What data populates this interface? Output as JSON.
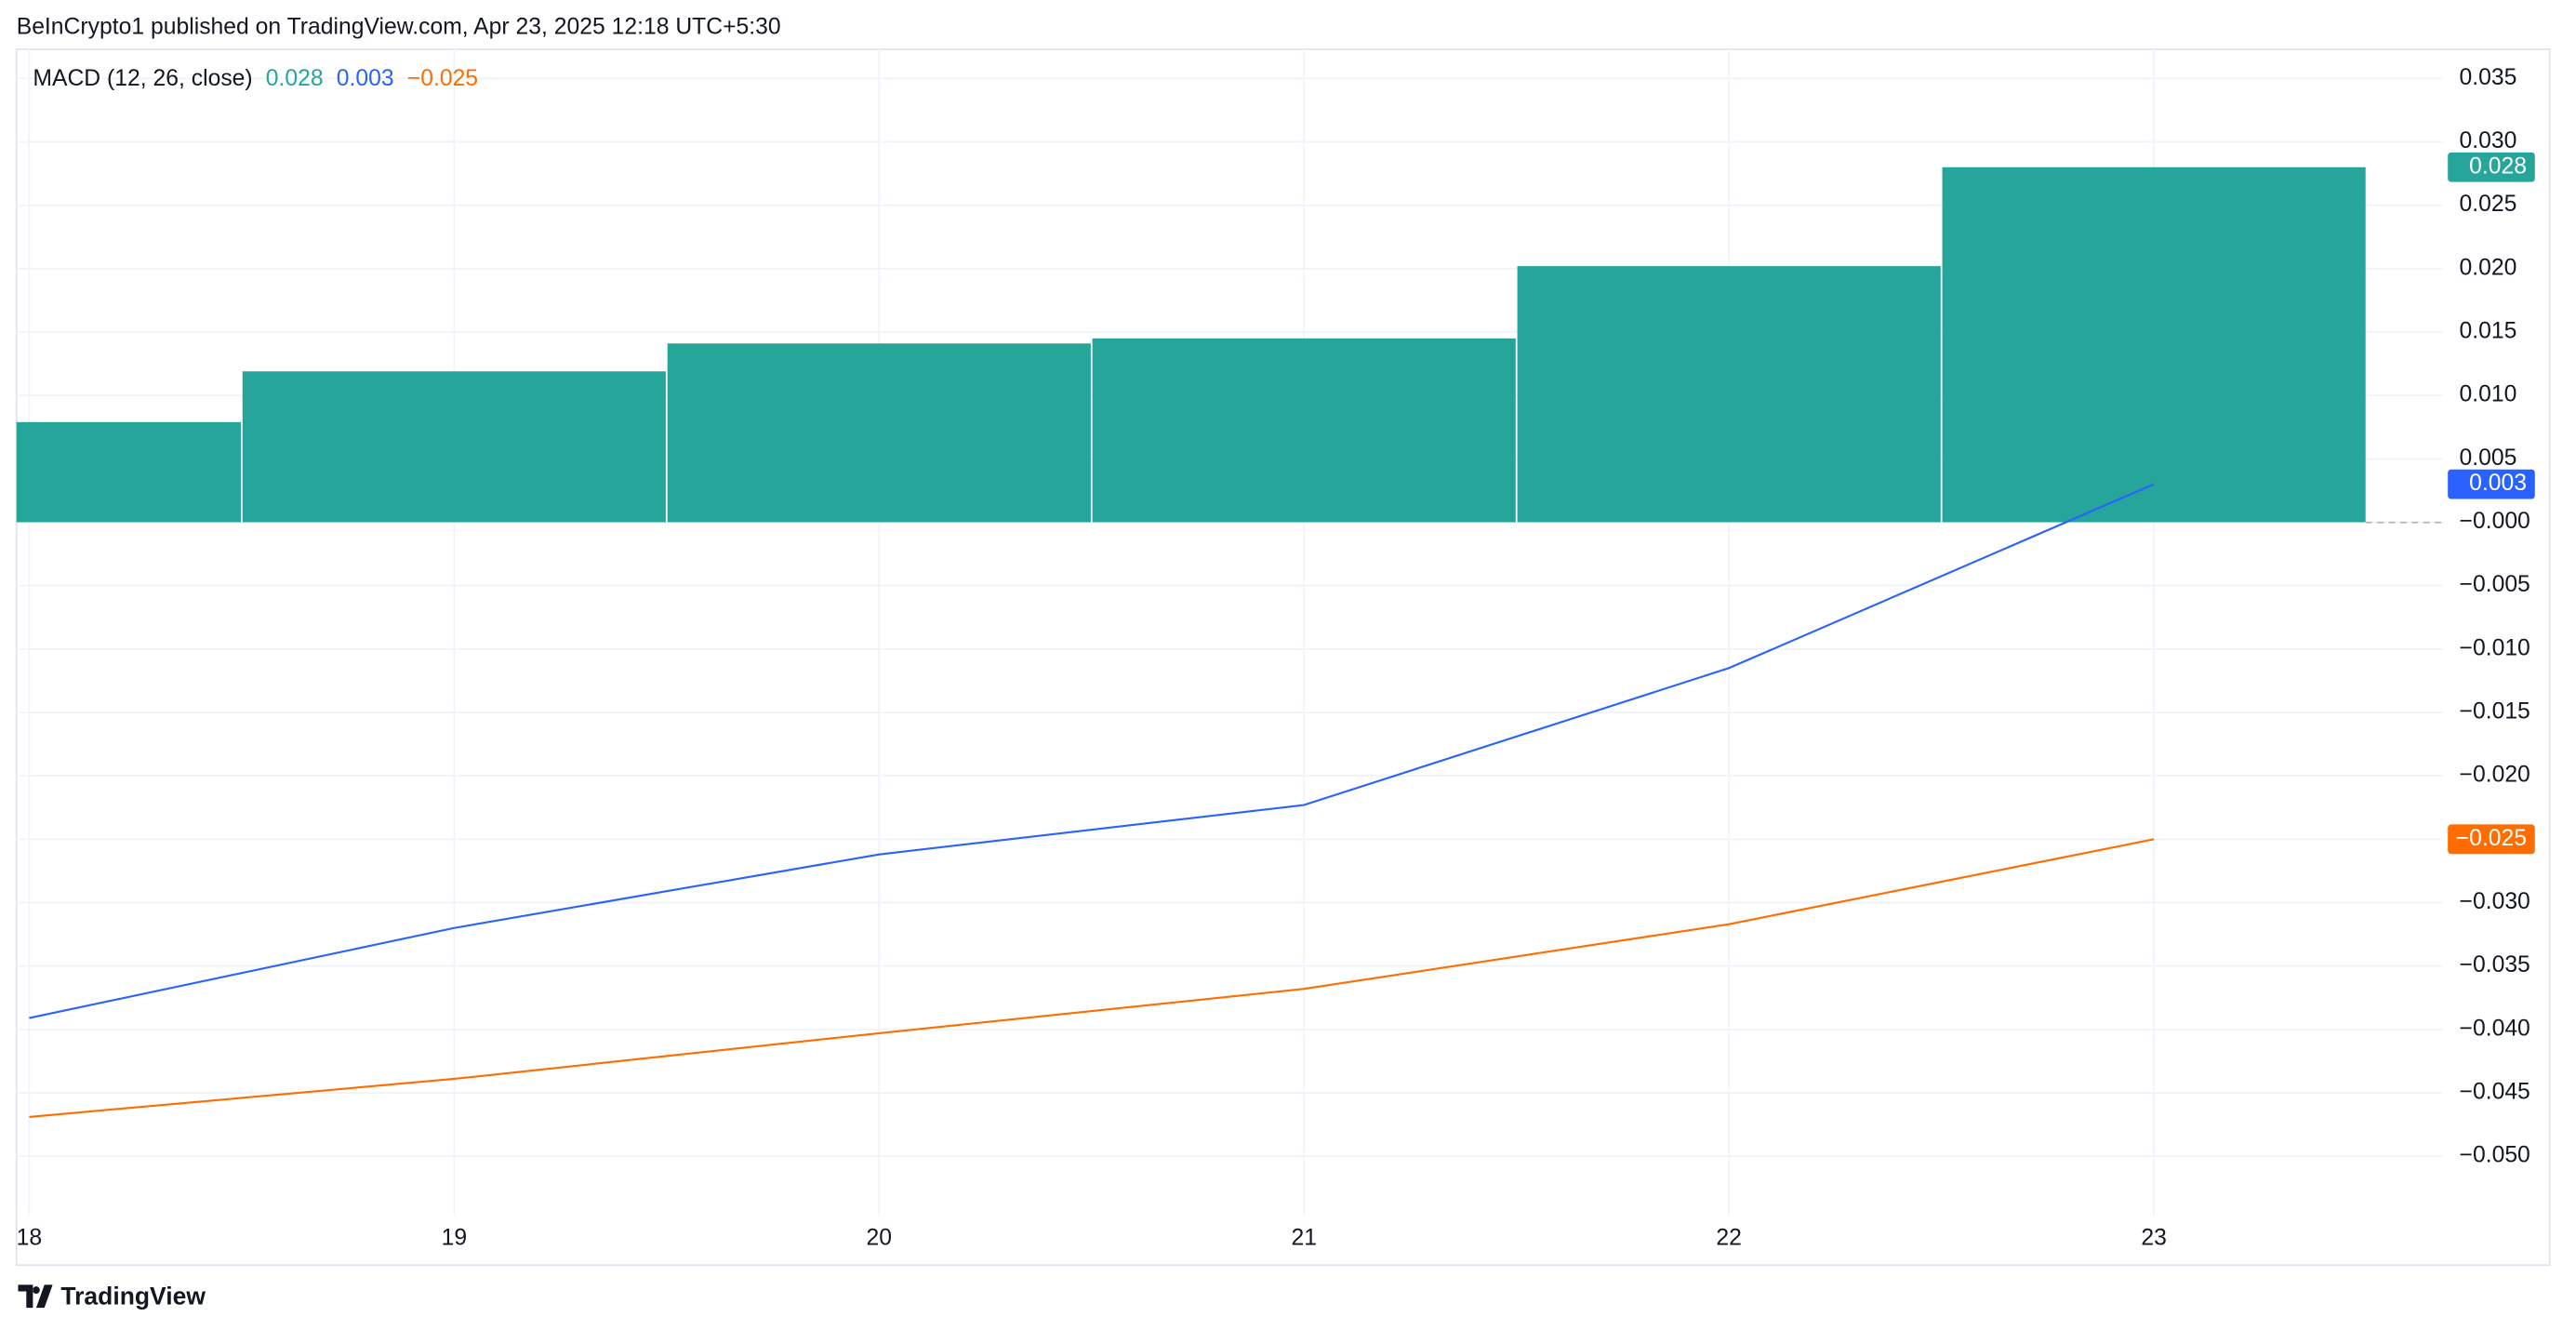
{
  "header": {
    "published": "BeInCrypto1 published on TradingView.com, Apr 23, 2025 12:18 UTC+5:30",
    "footer": "TradingView"
  },
  "chart_data": {
    "type": "bar",
    "title": "MACD (12, 26, close)",
    "x": [
      18,
      19,
      20,
      21,
      22,
      23
    ],
    "series": [
      {
        "type": "bar",
        "color": "#26a69a",
        "values": [
          0.0079,
          0.0119,
          0.0141,
          0.0145,
          0.0202,
          0.028
        ],
        "value_labels": [
          null,
          null,
          null,
          null,
          null,
          "0.028"
        ]
      },
      {
        "type": "line",
        "color": "#2962ff",
        "values": [
          -0.0391,
          -0.032,
          -0.0262,
          -0.0223,
          -0.0115,
          0.003
        ],
        "value_labels": [
          null,
          null,
          null,
          null,
          null,
          "0.003"
        ]
      },
      {
        "type": "line",
        "color": "#ff6d00",
        "values": [
          -0.0469,
          -0.0439,
          -0.0403,
          -0.0368,
          -0.0317,
          -0.025
        ],
        "value_labels": [
          null,
          null,
          null,
          null,
          null,
          "−0.025"
        ]
      }
    ],
    "xlim": [
      17.97,
      23.68
    ],
    "xticks": [
      18,
      19,
      20,
      21,
      22,
      23
    ],
    "ylim": [
      -0.0547,
      0.0373
    ],
    "yticks": [
      {
        "value": 0.035,
        "label": "0.035"
      },
      {
        "value": 0.03,
        "label": "0.030"
      },
      {
        "value": 0.025,
        "label": "0.025"
      },
      {
        "value": 0.02,
        "label": "0.020"
      },
      {
        "value": 0.015,
        "label": "0.015"
      },
      {
        "value": 0.01,
        "label": "0.010"
      },
      {
        "value": 0.005,
        "label": "0.005"
      },
      {
        "value": 0,
        "label": "−0.000"
      },
      {
        "value": -0.005,
        "label": "−0.005"
      },
      {
        "value": -0.01,
        "label": "−0.010"
      },
      {
        "value": -0.015,
        "label": "−0.015"
      },
      {
        "value": -0.02,
        "label": "−0.020"
      },
      {
        "value": -0.025,
        "label": "−0.025"
      },
      {
        "value": -0.03,
        "label": "−0.030"
      },
      {
        "value": -0.035,
        "label": "−0.035"
      },
      {
        "value": -0.04,
        "label": "−0.040"
      },
      {
        "value": -0.045,
        "label": "−0.045"
      },
      {
        "value": -0.05,
        "label": "−0.050"
      }
    ],
    "grid": true
  }
}
